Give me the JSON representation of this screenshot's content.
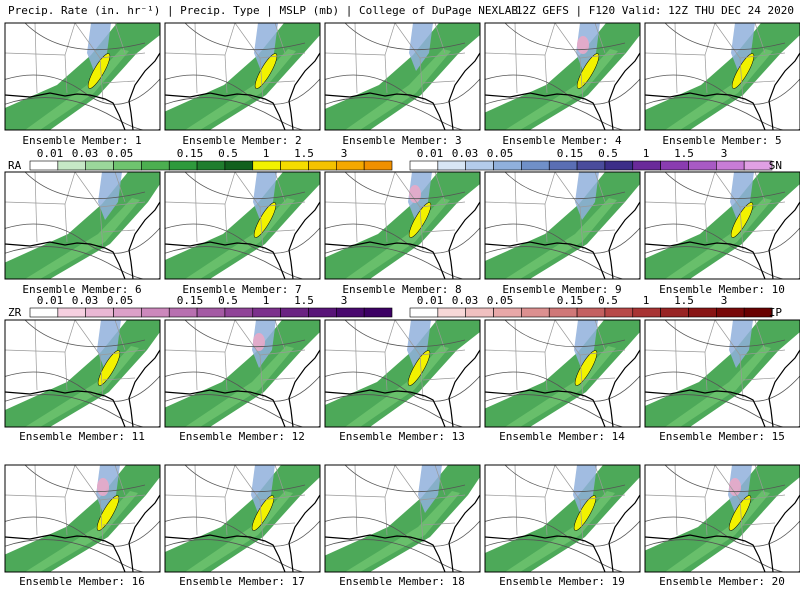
{
  "header": {
    "left": "Precip. Rate (in. hr⁻¹) | Precip. Type | MSLP (mb) | College of DuPage NEXLAB",
    "right": "12Z GEFS | F120 Valid: 12Z THU DEC 24 2020"
  },
  "panels": [
    "Ensemble Member: 1",
    "Ensemble Member: 2",
    "Ensemble Member: 3",
    "Ensemble Member: 4",
    "Ensemble Member: 5",
    "Ensemble Member: 6",
    "Ensemble Member: 7",
    "Ensemble Member: 8",
    "Ensemble Member: 9",
    "Ensemble Member: 10",
    "Ensemble Member: 11",
    "Ensemble Member: 12",
    "Ensemble Member: 13",
    "Ensemble Member: 14",
    "Ensemble Member: 15",
    "Ensemble Member: 16",
    "Ensemble Member: 17",
    "Ensemble Member: 18",
    "Ensemble Member: 19",
    "Ensemble Member: 20"
  ],
  "colorbars": [
    {
      "left": {
        "label": "RA",
        "ticks": [
          "0.01",
          "0.03",
          "0.05",
          "0.15",
          "0.5",
          "1",
          "1.5",
          "3"
        ],
        "colors": [
          "#ffffff",
          "#c6e8c6",
          "#9bd79b",
          "#6fc46f",
          "#4caf50",
          "#2e9a3c",
          "#1f7d2e",
          "#11601e",
          "#f2f200",
          "#f5dc00",
          "#f5c200",
          "#f5a800",
          "#f09000"
        ]
      },
      "right": {
        "label": "SN",
        "ticks": [
          "0.01",
          "0.03",
          "0.05",
          "0.15",
          "0.5",
          "1",
          "1.5",
          "3"
        ],
        "colors": [
          "#ffffff",
          "#d8e6f5",
          "#b4cceb",
          "#90b0dc",
          "#7090c8",
          "#5a6eb4",
          "#4a4c9c",
          "#3c2e88",
          "#6a2a9a",
          "#8a3cb0",
          "#a85ac4",
          "#c87cd6",
          "#e0a0e4"
        ]
      }
    },
    {
      "left": {
        "label": "ZR",
        "ticks": [
          "0.01",
          "0.03",
          "0.05",
          "0.15",
          "0.5",
          "1",
          "1.5",
          "3"
        ],
        "colors": [
          "#ffffff",
          "#f6d0e0",
          "#eab8d4",
          "#dca0c8",
          "#cc88bc",
          "#b870b0",
          "#a45aa4",
          "#904498",
          "#7c308c",
          "#6a2282",
          "#581478",
          "#48086e",
          "#3c0064"
        ]
      },
      "right": {
        "label": "IP",
        "ticks": [
          "0.01",
          "0.03",
          "0.05",
          "0.15",
          "0.5",
          "1",
          "1.5",
          "3"
        ],
        "colors": [
          "#ffffff",
          "#f8d8d8",
          "#f0c0c0",
          "#e8a8a8",
          "#dc9090",
          "#d07878",
          "#c46060",
          "#b84848",
          "#a83434",
          "#982424",
          "#881414",
          "#780808",
          "#680000"
        ]
      }
    }
  ]
}
